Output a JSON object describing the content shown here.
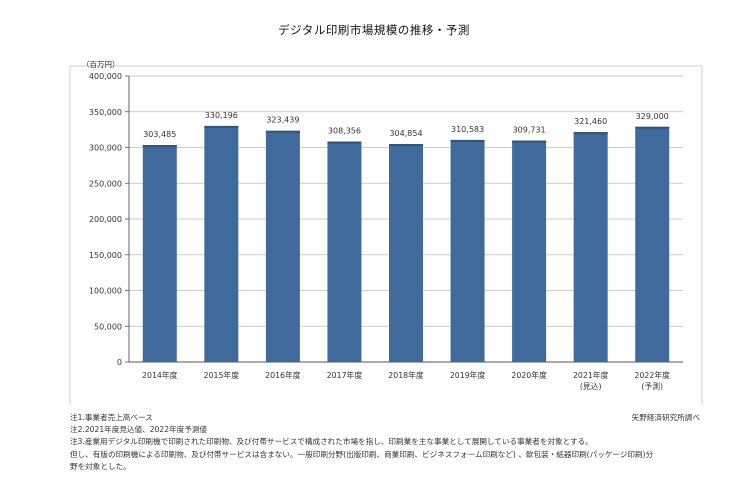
{
  "chart_data": {
    "type": "bar",
    "title": "デジタル印刷市場規模の推移・予測",
    "unit_label": "（百万円）",
    "categories": [
      "2014年度",
      "2015年度",
      "2016年度",
      "2017年度",
      "2018年度",
      "2019年度",
      "2020年度",
      "2021年度",
      "2022年度"
    ],
    "category_sublabels": [
      "",
      "",
      "",
      "",
      "",
      "",
      "",
      "(見込)",
      "(予測)"
    ],
    "values": [
      303485,
      330196,
      323439,
      308356,
      304854,
      310583,
      309731,
      321460,
      329000
    ],
    "value_labels": [
      "303,485",
      "330,196",
      "323,439",
      "308,356",
      "304,854",
      "310,583",
      "309,731",
      "321,460",
      "329,000"
    ],
    "ylim": [
      0,
      400000
    ],
    "yticks": [
      0,
      50000,
      100000,
      150000,
      200000,
      250000,
      300000,
      350000,
      400000
    ],
    "ytick_labels": [
      "0",
      "50,000",
      "100,000",
      "150,000",
      "200,000",
      "250,000",
      "300,000",
      "350,000",
      "400,000"
    ],
    "grid": true,
    "bar_color": "#3f6a9b"
  },
  "notes": {
    "note1": "注1.事業者売上高ベース",
    "note2": "注2.2021年度見込値、2022年度予測値",
    "note3": "注3.産業用デジタル印刷機で印刷された印刷物、及び付帯サービスで構成された市場を指し、印刷業を主な事業として展開している事業者を対象とする。",
    "note4": "但し、有版の印刷機による印刷物、及び付帯サービスは含まない。一般印刷分野(出版印刷、商業印刷、ビジネスフォーム印刷など) 、軟包装・紙器印刷(パッケージ印刷)分",
    "note5": "野を対象とした。",
    "source": "矢野経済研究所調べ"
  }
}
